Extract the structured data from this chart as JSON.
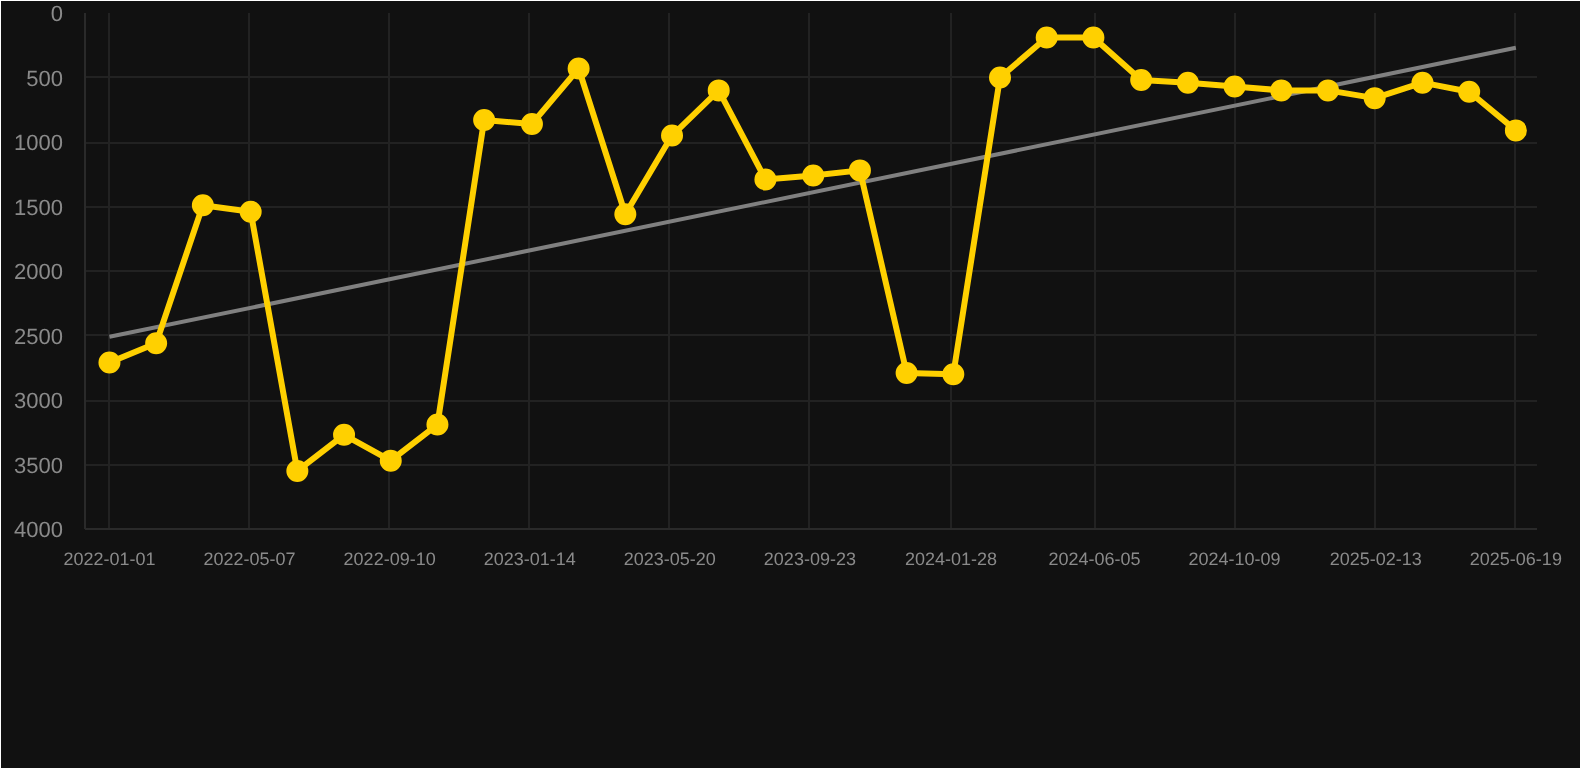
{
  "chart_data": {
    "type": "line",
    "marker": "circle",
    "grid": true,
    "x": [
      "2022-01-01",
      "2022-02-12",
      "2022-03-26",
      "2022-05-08",
      "2022-06-19",
      "2022-07-31",
      "2022-09-11",
      "2022-10-23",
      "2022-12-04",
      "2023-01-16",
      "2023-02-27",
      "2023-04-10",
      "2023-05-22",
      "2023-07-03",
      "2023-08-14",
      "2023-09-26",
      "2023-11-07",
      "2023-12-19",
      "2024-01-30",
      "2024-03-12",
      "2024-04-23",
      "2024-06-04",
      "2024-07-17",
      "2024-08-28",
      "2024-10-09",
      "2024-11-20",
      "2025-01-01",
      "2025-02-12",
      "2025-03-27",
      "2025-05-08",
      "2025-06-19"
    ],
    "series": [
      {
        "color": "#ffd000",
        "values": [
          2710,
          2560,
          1490,
          1540,
          3550,
          3270,
          3470,
          3190,
          830,
          860,
          430,
          1560,
          950,
          600,
          1290,
          1260,
          1220,
          2790,
          2800,
          500,
          190,
          190,
          520,
          540,
          570,
          600,
          600,
          660,
          540,
          610,
          910
        ]
      },
      {
        "type": "line",
        "marker": "none",
        "color": "#808080",
        "x": [
          "2022-01-01",
          "2025-06-19"
        ],
        "values": [
          2510,
          270
        ]
      }
    ],
    "xlim": [
      "2021-12-10",
      "2025-07-08"
    ],
    "xticks": [
      "2022-01-01",
      "2022-05-07",
      "2022-09-10",
      "2023-01-14",
      "2023-05-20",
      "2023-09-23",
      "2024-01-28",
      "2024-06-05",
      "2024-10-09",
      "2025-02-13",
      "2025-06-19"
    ],
    "ylim": [
      4000,
      0
    ],
    "yticks": [
      0,
      500,
      1000,
      1500,
      2000,
      2500,
      3000,
      3500,
      4000
    ]
  }
}
